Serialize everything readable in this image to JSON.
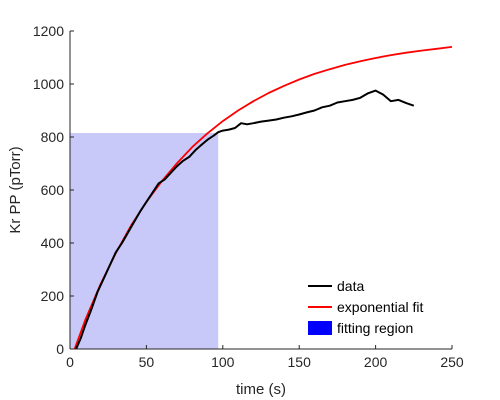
{
  "chart_data": {
    "type": "line",
    "xlabel": "time (s)",
    "ylabel": "Kr PP (pTorr)",
    "xlim": [
      0,
      250
    ],
    "ylim": [
      0,
      1200
    ],
    "x_ticks": [
      0,
      50,
      100,
      150,
      200,
      250
    ],
    "y_ticks": [
      0,
      200,
      400,
      600,
      800,
      1000,
      1200
    ],
    "grid": false,
    "legend_position": "bottom-right",
    "fitting_region": {
      "name": "fitting region",
      "x_range": [
        0,
        97
      ],
      "y_range": [
        0,
        815
      ],
      "color": "#c8c8f9",
      "legend_color": "#0000ff"
    },
    "series": [
      {
        "name": "data",
        "color": "#000000",
        "x": [
          4,
          7,
          10,
          14,
          18,
          22,
          26,
          30,
          34,
          38,
          42,
          46,
          50,
          54,
          58,
          62,
          66,
          70,
          74,
          78,
          82,
          86,
          90,
          94,
          97,
          100,
          104,
          108,
          112,
          116,
          120,
          125,
          130,
          135,
          140,
          145,
          150,
          155,
          160,
          165,
          170,
          175,
          180,
          185,
          190,
          195,
          200,
          205,
          210,
          215,
          220,
          225
        ],
        "y": [
          0,
          40,
          90,
          150,
          215,
          265,
          315,
          365,
          400,
          440,
          480,
          520,
          555,
          590,
          625,
          640,
          665,
          690,
          710,
          725,
          750,
          770,
          790,
          805,
          818,
          824,
          828,
          834,
          852,
          848,
          852,
          858,
          862,
          866,
          873,
          878,
          885,
          893,
          900,
          912,
          918,
          930,
          935,
          940,
          948,
          965,
          975,
          960,
          935,
          940,
          928,
          918
        ]
      },
      {
        "name": "exponential fit",
        "color": "#ff0000",
        "x": [
          3,
          10,
          20,
          30,
          40,
          50,
          60,
          70,
          80,
          90,
          100,
          110,
          120,
          130,
          140,
          150,
          160,
          170,
          180,
          190,
          200,
          210,
          220,
          230,
          240,
          250
        ],
        "y": [
          0,
          110,
          245,
          362,
          466,
          555,
          633,
          701,
          762,
          814,
          860,
          900,
          935,
          966,
          993,
          1017,
          1038,
          1056,
          1072,
          1086,
          1098,
          1109,
          1118,
          1126,
          1133,
          1140
        ]
      }
    ],
    "legend": [
      {
        "label": "data",
        "color": "#000000",
        "kind": "line"
      },
      {
        "label": "exponential fit",
        "color": "#ff0000",
        "kind": "line"
      },
      {
        "label": "fitting region",
        "color": "#0000ff",
        "kind": "patch"
      }
    ]
  }
}
